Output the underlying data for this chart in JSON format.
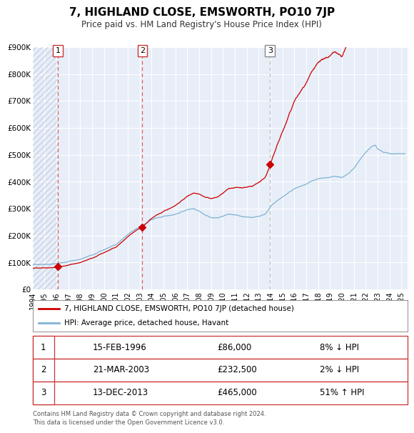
{
  "title": "7, HIGHLAND CLOSE, EMSWORTH, PO10 7JP",
  "subtitle": "Price paid vs. HM Land Registry's House Price Index (HPI)",
  "red_line_label": "7, HIGHLAND CLOSE, EMSWORTH, PO10 7JP (detached house)",
  "blue_line_label": "HPI: Average price, detached house, Havant",
  "transactions": [
    {
      "num": 1,
      "date": "15-FEB-1996",
      "price": "£86,000",
      "pct": "8% ↓ HPI",
      "year": 1996.12,
      "value": 86000
    },
    {
      "num": 2,
      "date": "21-MAR-2003",
      "price": "£232,500",
      "pct": "2% ↓ HPI",
      "year": 2003.22,
      "value": 232500
    },
    {
      "num": 3,
      "date": "13-DEC-2013",
      "price": "£465,000",
      "pct": "51% ↑ HPI",
      "year": 2013.95,
      "value": 465000
    }
  ],
  "vline1_x": 1996.12,
  "vline2_x": 2003.22,
  "vline3_x": 2013.95,
  "ylim": [
    0,
    900000
  ],
  "xlim": [
    1994.0,
    2025.5
  ],
  "yticks": [
    0,
    100000,
    200000,
    300000,
    400000,
    500000,
    600000,
    700000,
    800000,
    900000
  ],
  "ytick_labels": [
    "£0",
    "£100K",
    "£200K",
    "£300K",
    "£400K",
    "£500K",
    "£600K",
    "£700K",
    "£800K",
    "£900K"
  ],
  "xticks": [
    1994,
    1995,
    1996,
    1997,
    1998,
    1999,
    2000,
    2001,
    2002,
    2003,
    2004,
    2005,
    2006,
    2007,
    2008,
    2009,
    2010,
    2011,
    2012,
    2013,
    2014,
    2015,
    2016,
    2017,
    2018,
    2019,
    2020,
    2021,
    2022,
    2023,
    2024,
    2025
  ],
  "red_color": "#cc0000",
  "blue_color": "#7fb3d3",
  "dot_color": "#cc0000",
  "vline_red_color": "#e06060",
  "vline_gray_color": "#bbbbbb",
  "plot_bg_color": "#e8eef8",
  "footer": "Contains HM Land Registry data © Crown copyright and database right 2024.\nThis data is licensed under the Open Government Licence v3.0."
}
